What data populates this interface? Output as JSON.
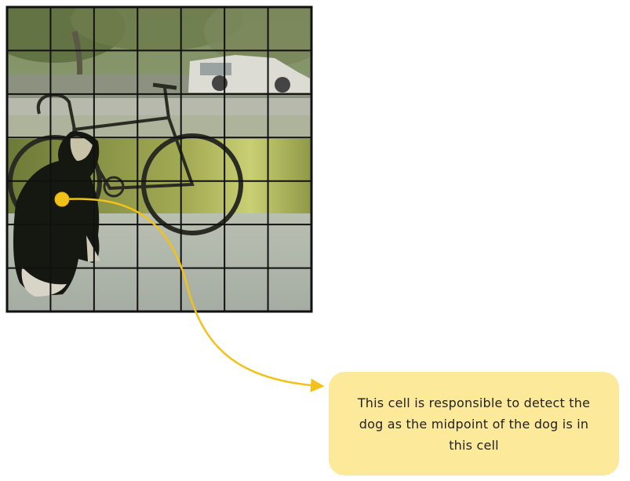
{
  "image": {
    "subject": "photo of a dog sitting next to a bicycle, overlaid with a 7x7 grid",
    "grid_rows": 7,
    "grid_cols": 7
  },
  "highlight_cell": {
    "row": 4,
    "col": 1
  },
  "callout": {
    "text": "This cell is responsible to detect the dog as the midpoint of the dog is in this cell"
  },
  "colors": {
    "marker": "#f2c21b",
    "arrow": "#f2c21b",
    "callout_bg": "#fde99a",
    "grid_lines": "#111111"
  }
}
